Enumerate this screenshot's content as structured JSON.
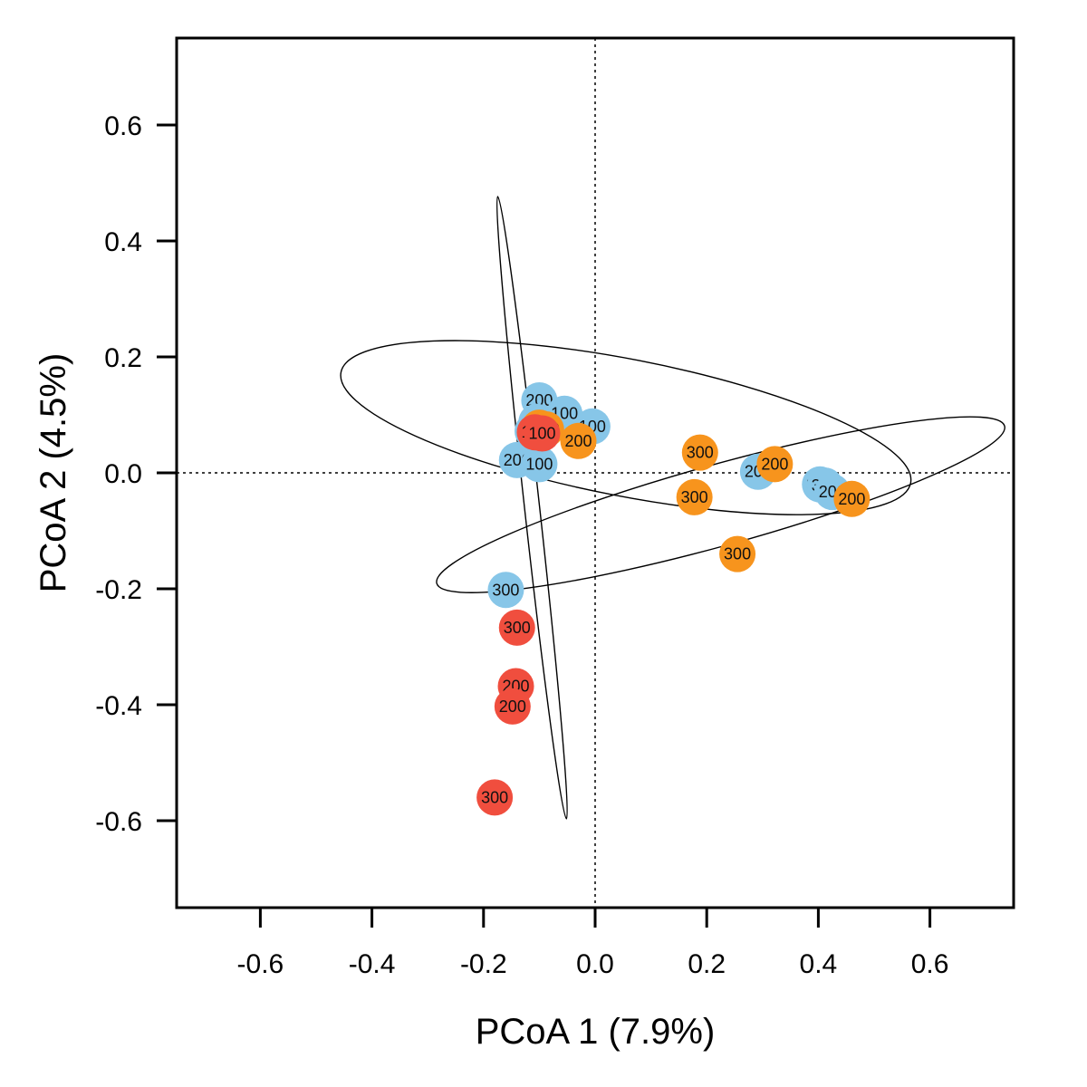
{
  "chart_data": {
    "type": "scatter",
    "xlabel": "PCoA 1 (7.9%)",
    "ylabel": "PCoA 2 (4.5%)",
    "xlim": [
      -0.75,
      0.75
    ],
    "ylim": [
      -0.75,
      0.75
    ],
    "xticks": [
      "-0.6",
      "-0.4",
      "-0.2",
      "0.0",
      "0.2",
      "0.4",
      "0.6"
    ],
    "yticks": [
      "-0.6",
      "-0.4",
      "-0.2",
      "0.0",
      "0.2",
      "0.4",
      "0.6"
    ],
    "reference_lines": {
      "x": 0,
      "y": 0,
      "style": "dotted"
    },
    "grid": false,
    "legend": "none",
    "series": [
      {
        "color": "#87c6e8",
        "points": [
          {
            "x": -0.1,
            "y": 0.125,
            "label": "200"
          },
          {
            "x": -0.055,
            "y": 0.102,
            "label": "100"
          },
          {
            "x": -0.005,
            "y": 0.08,
            "label": "100"
          },
          {
            "x": -0.105,
            "y": 0.088,
            "label": "100"
          },
          {
            "x": -0.112,
            "y": 0.072,
            "label": "100"
          },
          {
            "x": -0.14,
            "y": 0.022,
            "label": "200"
          },
          {
            "x": -0.1,
            "y": 0.015,
            "label": "100"
          },
          {
            "x": -0.16,
            "y": -0.202,
            "label": "300"
          },
          {
            "x": 0.292,
            "y": 0.002,
            "label": "200"
          },
          {
            "x": 0.403,
            "y": -0.02,
            "label": "300"
          },
          {
            "x": 0.412,
            "y": -0.022,
            "label": "300"
          },
          {
            "x": 0.425,
            "y": -0.033,
            "label": "200"
          }
        ]
      },
      {
        "color": "#f7941d",
        "points": [
          {
            "x": -0.1,
            "y": 0.078,
            "label": "100"
          },
          {
            "x": -0.088,
            "y": 0.075,
            "label": "100"
          },
          {
            "x": -0.03,
            "y": 0.055,
            "label": "200"
          },
          {
            "x": 0.188,
            "y": 0.035,
            "label": "300"
          },
          {
            "x": 0.178,
            "y": -0.042,
            "label": "300"
          },
          {
            "x": 0.322,
            "y": 0.015,
            "label": "200"
          },
          {
            "x": 0.46,
            "y": -0.045,
            "label": "200"
          },
          {
            "x": 0.255,
            "y": -0.14,
            "label": "300"
          }
        ]
      },
      {
        "color": "#f04e3e",
        "points": [
          {
            "x": -0.108,
            "y": 0.07,
            "label": "100"
          },
          {
            "x": -0.095,
            "y": 0.068,
            "label": "100"
          },
          {
            "x": -0.14,
            "y": -0.267,
            "label": "300"
          },
          {
            "x": -0.142,
            "y": -0.368,
            "label": "200"
          },
          {
            "x": -0.148,
            "y": -0.403,
            "label": "200"
          },
          {
            "x": -0.18,
            "y": -0.56,
            "label": "300"
          }
        ]
      }
    ],
    "ellipses": [
      {
        "cx": 0.055,
        "cy": 0.078,
        "rx": 0.52,
        "ry": 0.118,
        "angle_deg": -11
      },
      {
        "cx": 0.225,
        "cy": -0.055,
        "rx": 0.528,
        "ry": 0.07,
        "angle_deg": 15.5
      },
      {
        "cx": -0.113,
        "cy": -0.06,
        "rx": 0.561,
        "ry": 0.013,
        "angle_deg": 96.3
      }
    ]
  }
}
